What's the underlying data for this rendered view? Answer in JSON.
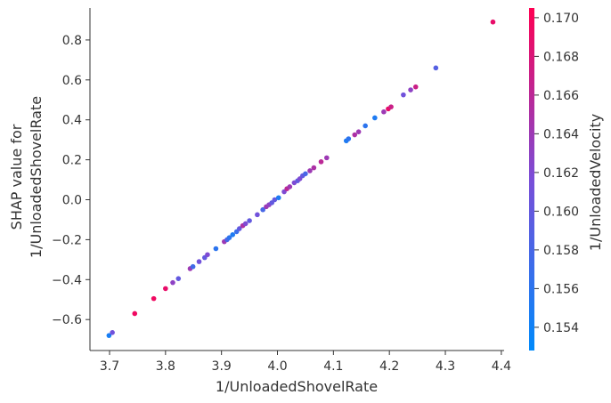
{
  "chart_data": {
    "type": "scatter",
    "xlabel": "1/UnloadedShovelRate",
    "ylabel_lines": [
      "SHAP value for",
      "1/UnloadedShovelRate"
    ],
    "colorbar_label": "1/UnloadedVelocity",
    "xlim": [
      3.665,
      4.405
    ],
    "ylim": [
      -0.755,
      0.96
    ],
    "x_ticks": [
      3.7,
      3.8,
      3.9,
      4.0,
      4.1,
      4.2,
      4.3,
      4.4
    ],
    "x_tick_labels": [
      "3.7",
      "3.8",
      "3.9",
      "4.0",
      "4.1",
      "4.2",
      "4.3",
      "4.4"
    ],
    "y_ticks": [
      -0.6,
      -0.4,
      -0.2,
      0.0,
      0.2,
      0.4,
      0.6,
      0.8
    ],
    "y_tick_labels": [
      "−0.6",
      "−0.4",
      "−0.2",
      "0.0",
      "0.2",
      "0.4",
      "0.6",
      "0.8"
    ],
    "colorbar": {
      "range": [
        0.1528,
        0.1705
      ],
      "ticks": [
        0.154,
        0.156,
        0.158,
        0.16,
        0.162,
        0.164,
        0.166,
        0.168,
        0.17
      ],
      "tick_labels": [
        "0.154",
        "0.156",
        "0.158",
        "0.160",
        "0.162",
        "0.164",
        "0.166",
        "0.168",
        "0.170"
      ],
      "colors": [
        "#008afb",
        "#7a4ed8",
        "#ff0052"
      ]
    },
    "points": [
      {
        "x": 3.699,
        "y": -0.68,
        "c": 0.1545
      },
      {
        "x": 3.705,
        "y": -0.665,
        "c": 0.161
      },
      {
        "x": 3.745,
        "y": -0.57,
        "c": 0.1695
      },
      {
        "x": 3.779,
        "y": -0.495,
        "c": 0.1695
      },
      {
        "x": 3.8,
        "y": -0.445,
        "c": 0.169
      },
      {
        "x": 3.813,
        "y": -0.415,
        "c": 0.163
      },
      {
        "x": 3.823,
        "y": -0.395,
        "c": 0.16
      },
      {
        "x": 3.844,
        "y": -0.345,
        "c": 0.164
      },
      {
        "x": 3.849,
        "y": -0.335,
        "c": 0.1575
      },
      {
        "x": 3.86,
        "y": -0.31,
        "c": 0.161
      },
      {
        "x": 3.87,
        "y": -0.29,
        "c": 0.16
      },
      {
        "x": 3.875,
        "y": -0.275,
        "c": 0.162
      },
      {
        "x": 3.89,
        "y": -0.245,
        "c": 0.156
      },
      {
        "x": 3.905,
        "y": -0.21,
        "c": 0.164
      },
      {
        "x": 3.91,
        "y": -0.2,
        "c": 0.158
      },
      {
        "x": 3.914,
        "y": -0.19,
        "c": 0.156
      },
      {
        "x": 3.92,
        "y": -0.175,
        "c": 0.155
      },
      {
        "x": 3.927,
        "y": -0.16,
        "c": 0.157
      },
      {
        "x": 3.932,
        "y": -0.145,
        "c": 0.16
      },
      {
        "x": 3.938,
        "y": -0.13,
        "c": 0.165
      },
      {
        "x": 3.943,
        "y": -0.12,
        "c": 0.162
      },
      {
        "x": 3.95,
        "y": -0.105,
        "c": 0.16
      },
      {
        "x": 3.964,
        "y": -0.075,
        "c": 0.161
      },
      {
        "x": 3.974,
        "y": -0.05,
        "c": 0.158
      },
      {
        "x": 3.98,
        "y": -0.035,
        "c": 0.164
      },
      {
        "x": 3.985,
        "y": -0.025,
        "c": 0.163
      },
      {
        "x": 3.99,
        "y": -0.015,
        "c": 0.16
      },
      {
        "x": 3.995,
        "y": 0.0,
        "c": 0.16
      },
      {
        "x": 4.002,
        "y": 0.01,
        "c": 0.155
      },
      {
        "x": 4.012,
        "y": 0.04,
        "c": 0.162
      },
      {
        "x": 4.017,
        "y": 0.055,
        "c": 0.166
      },
      {
        "x": 4.022,
        "y": 0.065,
        "c": 0.164
      },
      {
        "x": 4.03,
        "y": 0.085,
        "c": 0.162
      },
      {
        "x": 4.036,
        "y": 0.095,
        "c": 0.16
      },
      {
        "x": 4.04,
        "y": 0.105,
        "c": 0.162
      },
      {
        "x": 4.045,
        "y": 0.12,
        "c": 0.16
      },
      {
        "x": 4.05,
        "y": 0.13,
        "c": 0.158
      },
      {
        "x": 4.058,
        "y": 0.145,
        "c": 0.164
      },
      {
        "x": 4.065,
        "y": 0.16,
        "c": 0.165
      },
      {
        "x": 4.078,
        "y": 0.19,
        "c": 0.166
      },
      {
        "x": 4.088,
        "y": 0.21,
        "c": 0.164
      },
      {
        "x": 4.123,
        "y": 0.295,
        "c": 0.155
      },
      {
        "x": 4.127,
        "y": 0.305,
        "c": 0.156
      },
      {
        "x": 4.138,
        "y": 0.325,
        "c": 0.165
      },
      {
        "x": 4.145,
        "y": 0.34,
        "c": 0.164
      },
      {
        "x": 4.157,
        "y": 0.37,
        "c": 0.156
      },
      {
        "x": 4.174,
        "y": 0.41,
        "c": 0.155
      },
      {
        "x": 4.19,
        "y": 0.44,
        "c": 0.164
      },
      {
        "x": 4.198,
        "y": 0.455,
        "c": 0.169
      },
      {
        "x": 4.203,
        "y": 0.465,
        "c": 0.167
      },
      {
        "x": 4.225,
        "y": 0.525,
        "c": 0.161
      },
      {
        "x": 4.238,
        "y": 0.55,
        "c": 0.163
      },
      {
        "x": 4.247,
        "y": 0.565,
        "c": 0.167
      },
      {
        "x": 4.283,
        "y": 0.66,
        "c": 0.159
      },
      {
        "x": 4.385,
        "y": 0.89,
        "c": 0.169
      }
    ]
  }
}
